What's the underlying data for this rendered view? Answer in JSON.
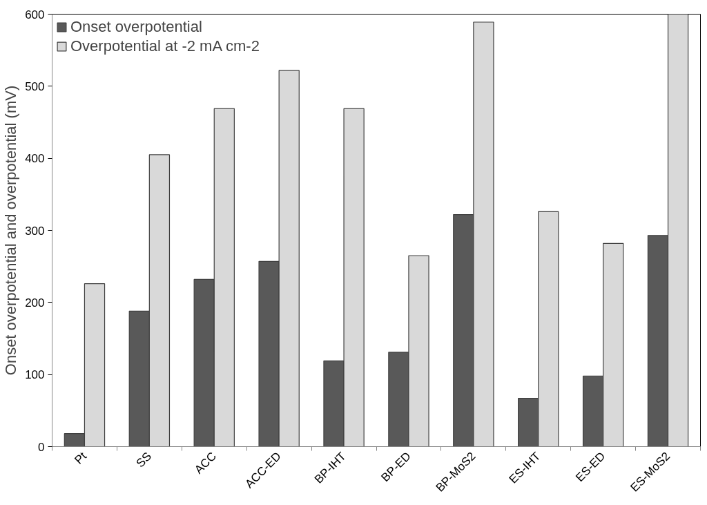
{
  "chart_data": {
    "type": "bar",
    "ylabel": "Onset overpotential and overpotential (mV)",
    "categories": [
      "Pt",
      "SS",
      "ACC",
      "ACC-ED",
      "BP-IHT",
      "BP-ED",
      "BP-MoS2",
      "ES-IHT",
      "ES-ED",
      "ES-MoS2"
    ],
    "series": [
      {
        "name": "Onset overpotential",
        "color": "#595959",
        "values": [
          18,
          188,
          232,
          257,
          119,
          131,
          322,
          67,
          98,
          293
        ]
      },
      {
        "name": "Overpotential at -2 mA cm-2",
        "color": "#d9d9d9",
        "values": [
          226,
          405,
          469,
          522,
          469,
          265,
          589,
          326,
          282,
          600
        ]
      }
    ],
    "ylim": [
      0,
      600
    ],
    "yticks": [
      0,
      100,
      200,
      300,
      400,
      500,
      600
    ],
    "grid": false,
    "legend": "top left"
  }
}
